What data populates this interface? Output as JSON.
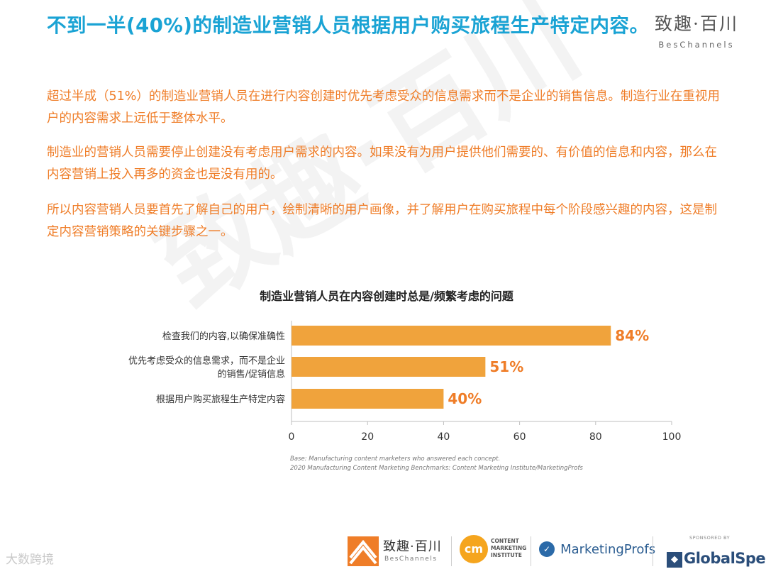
{
  "header": {
    "title": "不到一半(40%)的制造业营销人员根据用户购买旅程生产特定内容。",
    "logo_cn": "致趣·百川",
    "logo_en": "BesChannels"
  },
  "paragraphs": [
    "超过半成（51%）的制造业营销人员在进行内容创建时优先考虑受众的信息需求而不是企业的销售信息。制造行业在重视用户的内容需求上远低于整体水平。",
    "制造业的营销人员需要停止创建没有考虑用户需求的内容。如果没有为用户提供他们需要的、有价值的信息和内容，那么在内容营销上投入再多的资金也是没有用的。",
    "所以内容营销人员要首先了解自己的用户，绘制清晰的用户画像，并了解用户在购买旅程中每个阶段感兴趣的内容，这是制定内容营销策略的关键步骤之一。"
  ],
  "chart_data": {
    "type": "bar",
    "orientation": "horizontal",
    "title": "制造业营销人员在内容创建时总是/频繁考虑的问题",
    "categories": [
      [
        "检查我们的内容,以确保准确性"
      ],
      [
        "优先考虑受众的信息需求，而不是企业",
        "的销售/促销信息"
      ],
      [
        "根据用户购买旅程生产特定内容"
      ]
    ],
    "values": [
      84,
      51,
      40
    ],
    "value_labels": [
      "84%",
      "51%",
      "40%"
    ],
    "xlim": [
      0,
      100
    ],
    "xticks": [
      "0",
      "20",
      "40",
      "60",
      "80",
      "100"
    ],
    "xlabel": "",
    "ylabel": "",
    "grid": false,
    "bar_color": "#f0a33c",
    "label_color": "#ef7d28"
  },
  "notes": {
    "base": "Base: Manufacturing content marketers who answered each concept.",
    "source": "2020 Manufacturing Content Marketing Benchmarks: Content Marketing Institute/MarketingProfs"
  },
  "footer": {
    "bes_cn": "致趣·百川",
    "bes_en": "BesChannels",
    "cmi_mark": "cm",
    "cmi_text": "CONTENT MARKETING INSTITUTE",
    "mp_text": "MarketingProfs",
    "gs_sponsored": "SPONSORED BY",
    "gs_text": "GlobalSpec",
    "watermark": "大数跨境"
  },
  "colors": {
    "title": "#1aa3d4",
    "text": "#ef7d28",
    "bar": "#f0a33c"
  }
}
